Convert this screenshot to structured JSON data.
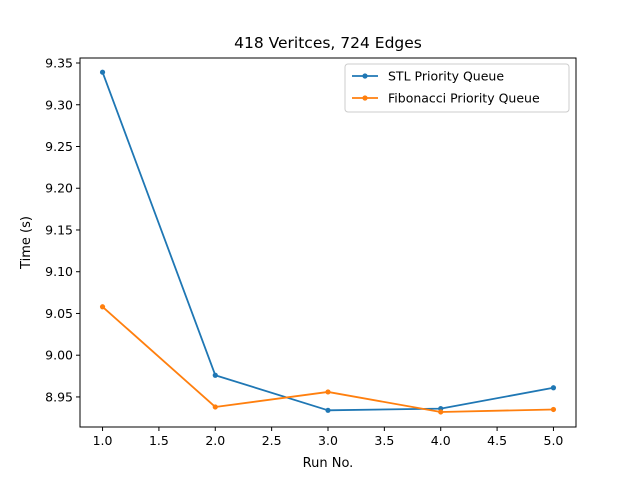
{
  "chart_data": {
    "type": "line",
    "title": "418 Veritces, 724 Edges",
    "xlabel": "Run No.",
    "ylabel": "Time (s)",
    "xlim": [
      0.8,
      5.2
    ],
    "ylim": [
      8.914,
      9.356
    ],
    "xticks": [
      1.0,
      1.5,
      2.0,
      2.5,
      3.0,
      3.5,
      4.0,
      4.5,
      5.0
    ],
    "xtick_labels": [
      "1.0",
      "1.5",
      "2.0",
      "2.5",
      "3.0",
      "3.5",
      "4.0",
      "4.5",
      "5.0"
    ],
    "yticks": [
      8.95,
      9.0,
      9.05,
      9.1,
      9.15,
      9.2,
      9.25,
      9.3,
      9.35
    ],
    "ytick_labels": [
      "8.95",
      "9.00",
      "9.05",
      "9.10",
      "9.15",
      "9.20",
      "9.25",
      "9.30",
      "9.35"
    ],
    "grid": false,
    "legend_position": "top-right",
    "x": [
      1,
      2,
      3,
      4,
      5
    ],
    "series": [
      {
        "name": "STL Priority Queue",
        "color": "#1f77b4",
        "values": [
          9.339,
          8.976,
          8.934,
          8.936,
          8.961
        ]
      },
      {
        "name": "Fibonacci Priority Queue",
        "color": "#ff7f0e",
        "values": [
          9.058,
          8.938,
          8.956,
          8.932,
          8.935
        ]
      }
    ]
  }
}
